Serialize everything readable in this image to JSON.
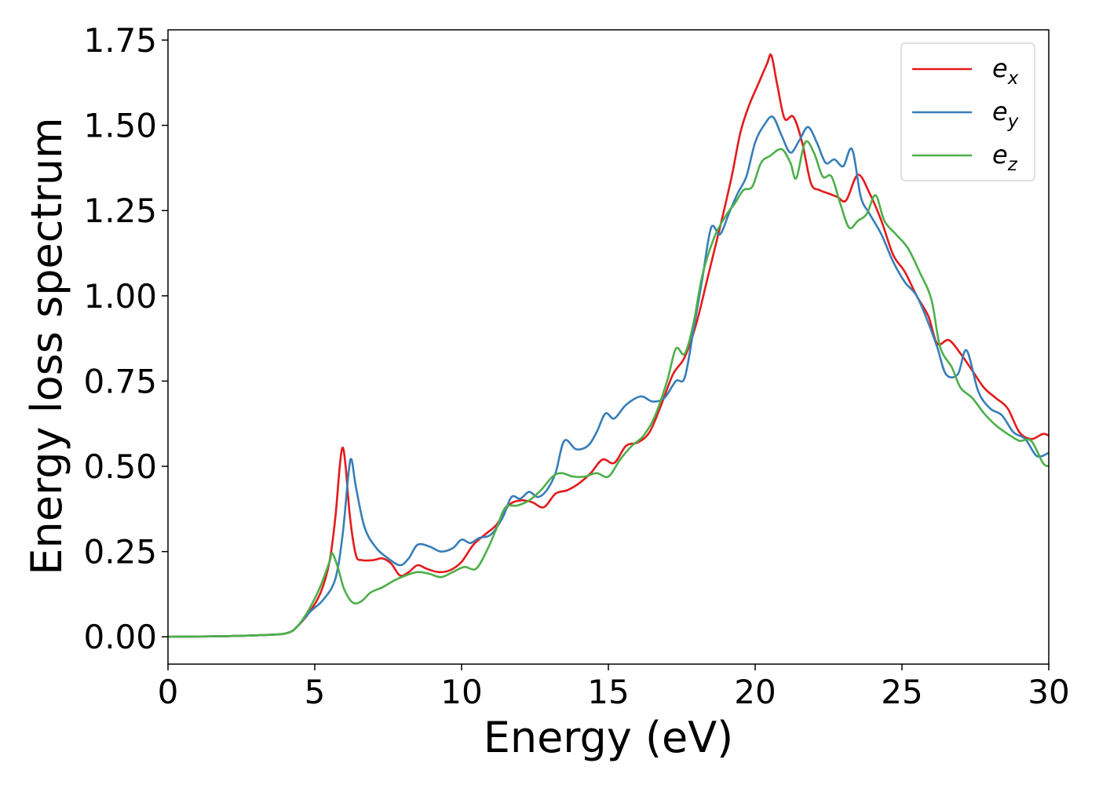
{
  "chart_data": {
    "type": "line",
    "title": "",
    "xlabel": "Energy (eV)",
    "ylabel": "Energy loss spectrum",
    "xlim": [
      0,
      30
    ],
    "ylim": [
      -0.08,
      1.78
    ],
    "xticks": [
      0,
      5,
      10,
      15,
      20,
      25,
      30
    ],
    "xtick_labels": [
      "0",
      "5",
      "10",
      "15",
      "20",
      "25",
      "30"
    ],
    "yticks": [
      0.0,
      0.25,
      0.5,
      0.75,
      1.0,
      1.25,
      1.5,
      1.75
    ],
    "ytick_labels": [
      "0.00",
      "0.25",
      "0.50",
      "0.75",
      "1.00",
      "1.25",
      "1.50",
      "1.75"
    ],
    "grid": false,
    "legend_position": "top-right",
    "series": [
      {
        "name": "e_x",
        "base": "e",
        "sub": "x",
        "color": "#e41a1c",
        "points": [
          [
            0,
            0
          ],
          [
            2,
            0.002
          ],
          [
            3.5,
            0.006
          ],
          [
            4.1,
            0.012
          ],
          [
            4.4,
            0.03
          ],
          [
            4.8,
            0.07
          ],
          [
            5.2,
            0.13
          ],
          [
            5.5,
            0.22
          ],
          [
            5.7,
            0.35
          ],
          [
            5.85,
            0.5
          ],
          [
            5.95,
            0.555
          ],
          [
            6.05,
            0.5
          ],
          [
            6.2,
            0.35
          ],
          [
            6.4,
            0.24
          ],
          [
            6.6,
            0.225
          ],
          [
            7.0,
            0.225
          ],
          [
            7.3,
            0.23
          ],
          [
            7.6,
            0.215
          ],
          [
            7.9,
            0.18
          ],
          [
            8.2,
            0.19
          ],
          [
            8.5,
            0.21
          ],
          [
            8.8,
            0.2
          ],
          [
            9.2,
            0.19
          ],
          [
            9.6,
            0.195
          ],
          [
            10.0,
            0.22
          ],
          [
            10.4,
            0.27
          ],
          [
            10.8,
            0.3
          ],
          [
            11.2,
            0.33
          ],
          [
            11.6,
            0.385
          ],
          [
            12.0,
            0.4
          ],
          [
            12.4,
            0.395
          ],
          [
            12.8,
            0.38
          ],
          [
            13.2,
            0.42
          ],
          [
            13.6,
            0.43
          ],
          [
            14.0,
            0.45
          ],
          [
            14.4,
            0.48
          ],
          [
            14.8,
            0.52
          ],
          [
            15.2,
            0.51
          ],
          [
            15.6,
            0.56
          ],
          [
            16.0,
            0.57
          ],
          [
            16.4,
            0.6
          ],
          [
            16.8,
            0.68
          ],
          [
            17.2,
            0.77
          ],
          [
            17.6,
            0.82
          ],
          [
            18.0,
            0.92
          ],
          [
            18.4,
            1.06
          ],
          [
            18.8,
            1.2
          ],
          [
            19.2,
            1.35
          ],
          [
            19.5,
            1.48
          ],
          [
            19.8,
            1.56
          ],
          [
            20.1,
            1.62
          ],
          [
            20.4,
            1.68
          ],
          [
            20.55,
            1.705
          ],
          [
            20.75,
            1.62
          ],
          [
            21.0,
            1.52
          ],
          [
            21.3,
            1.525
          ],
          [
            21.6,
            1.45
          ],
          [
            21.9,
            1.33
          ],
          [
            22.2,
            1.31
          ],
          [
            22.5,
            1.3
          ],
          [
            22.8,
            1.29
          ],
          [
            23.1,
            1.28
          ],
          [
            23.5,
            1.355
          ],
          [
            23.9,
            1.3
          ],
          [
            24.3,
            1.22
          ],
          [
            24.7,
            1.12
          ],
          [
            25.1,
            1.07
          ],
          [
            25.5,
            1.0
          ],
          [
            25.9,
            0.94
          ],
          [
            26.2,
            0.86
          ],
          [
            26.6,
            0.87
          ],
          [
            27.0,
            0.83
          ],
          [
            27.4,
            0.78
          ],
          [
            27.8,
            0.73
          ],
          [
            28.2,
            0.7
          ],
          [
            28.6,
            0.67
          ],
          [
            29.0,
            0.6
          ],
          [
            29.4,
            0.58
          ],
          [
            29.8,
            0.595
          ],
          [
            30,
            0.59
          ]
        ]
      },
      {
        "name": "e_y",
        "base": "e",
        "sub": "y",
        "color": "#377eb8",
        "points": [
          [
            0,
            0
          ],
          [
            2,
            0.002
          ],
          [
            3.5,
            0.006
          ],
          [
            4.1,
            0.012
          ],
          [
            4.4,
            0.03
          ],
          [
            4.8,
            0.07
          ],
          [
            5.3,
            0.11
          ],
          [
            5.7,
            0.17
          ],
          [
            5.95,
            0.3
          ],
          [
            6.15,
            0.48
          ],
          [
            6.25,
            0.52
          ],
          [
            6.4,
            0.44
          ],
          [
            6.7,
            0.32
          ],
          [
            7.1,
            0.26
          ],
          [
            7.5,
            0.23
          ],
          [
            7.9,
            0.21
          ],
          [
            8.2,
            0.23
          ],
          [
            8.5,
            0.27
          ],
          [
            8.9,
            0.265
          ],
          [
            9.3,
            0.25
          ],
          [
            9.7,
            0.26
          ],
          [
            10.0,
            0.285
          ],
          [
            10.3,
            0.275
          ],
          [
            10.6,
            0.29
          ],
          [
            11.0,
            0.3
          ],
          [
            11.4,
            0.35
          ],
          [
            11.7,
            0.41
          ],
          [
            12.0,
            0.405
          ],
          [
            12.3,
            0.425
          ],
          [
            12.6,
            0.41
          ],
          [
            12.9,
            0.43
          ],
          [
            13.2,
            0.48
          ],
          [
            13.5,
            0.575
          ],
          [
            13.9,
            0.55
          ],
          [
            14.3,
            0.56
          ],
          [
            14.6,
            0.6
          ],
          [
            14.9,
            0.655
          ],
          [
            15.2,
            0.64
          ],
          [
            15.6,
            0.68
          ],
          [
            16.1,
            0.705
          ],
          [
            16.5,
            0.69
          ],
          [
            16.9,
            0.7
          ],
          [
            17.3,
            0.75
          ],
          [
            17.6,
            0.76
          ],
          [
            17.9,
            0.9
          ],
          [
            18.2,
            1.05
          ],
          [
            18.5,
            1.2
          ],
          [
            18.8,
            1.18
          ],
          [
            19.1,
            1.24
          ],
          [
            19.4,
            1.3
          ],
          [
            19.7,
            1.35
          ],
          [
            20.0,
            1.45
          ],
          [
            20.3,
            1.5
          ],
          [
            20.6,
            1.525
          ],
          [
            20.9,
            1.47
          ],
          [
            21.2,
            1.42
          ],
          [
            21.5,
            1.455
          ],
          [
            21.8,
            1.495
          ],
          [
            22.1,
            1.45
          ],
          [
            22.4,
            1.39
          ],
          [
            22.7,
            1.4
          ],
          [
            23.0,
            1.38
          ],
          [
            23.3,
            1.43
          ],
          [
            23.6,
            1.29
          ],
          [
            23.9,
            1.24
          ],
          [
            24.3,
            1.18
          ],
          [
            24.7,
            1.1
          ],
          [
            25.1,
            1.04
          ],
          [
            25.5,
            1.0
          ],
          [
            25.9,
            0.92
          ],
          [
            26.2,
            0.85
          ],
          [
            26.5,
            0.77
          ],
          [
            26.9,
            0.77
          ],
          [
            27.2,
            0.84
          ],
          [
            27.6,
            0.72
          ],
          [
            28.0,
            0.67
          ],
          [
            28.4,
            0.65
          ],
          [
            28.8,
            0.6
          ],
          [
            29.2,
            0.58
          ],
          [
            29.6,
            0.53
          ],
          [
            30,
            0.54
          ]
        ]
      },
      {
        "name": "e_z",
        "base": "e",
        "sub": "z",
        "color": "#4daf4a",
        "points": [
          [
            0,
            0
          ],
          [
            2,
            0.002
          ],
          [
            3.5,
            0.006
          ],
          [
            4.1,
            0.012
          ],
          [
            4.4,
            0.03
          ],
          [
            4.8,
            0.08
          ],
          [
            5.2,
            0.15
          ],
          [
            5.5,
            0.22
          ],
          [
            5.6,
            0.245
          ],
          [
            5.8,
            0.2
          ],
          [
            6.0,
            0.14
          ],
          [
            6.3,
            0.1
          ],
          [
            6.6,
            0.105
          ],
          [
            6.9,
            0.13
          ],
          [
            7.3,
            0.145
          ],
          [
            7.7,
            0.165
          ],
          [
            8.1,
            0.18
          ],
          [
            8.5,
            0.19
          ],
          [
            8.9,
            0.185
          ],
          [
            9.3,
            0.175
          ],
          [
            9.7,
            0.19
          ],
          [
            10.1,
            0.205
          ],
          [
            10.5,
            0.2
          ],
          [
            10.9,
            0.26
          ],
          [
            11.2,
            0.32
          ],
          [
            11.5,
            0.38
          ],
          [
            11.9,
            0.385
          ],
          [
            12.3,
            0.4
          ],
          [
            12.7,
            0.43
          ],
          [
            13.1,
            0.47
          ],
          [
            13.4,
            0.48
          ],
          [
            13.8,
            0.47
          ],
          [
            14.2,
            0.47
          ],
          [
            14.6,
            0.48
          ],
          [
            15.0,
            0.47
          ],
          [
            15.4,
            0.52
          ],
          [
            15.8,
            0.56
          ],
          [
            16.2,
            0.59
          ],
          [
            16.6,
            0.65
          ],
          [
            17.0,
            0.75
          ],
          [
            17.3,
            0.845
          ],
          [
            17.6,
            0.83
          ],
          [
            17.9,
            0.92
          ],
          [
            18.2,
            1.06
          ],
          [
            18.6,
            1.17
          ],
          [
            19.0,
            1.235
          ],
          [
            19.3,
            1.27
          ],
          [
            19.6,
            1.31
          ],
          [
            19.9,
            1.32
          ],
          [
            20.2,
            1.39
          ],
          [
            20.5,
            1.41
          ],
          [
            20.9,
            1.43
          ],
          [
            21.2,
            1.39
          ],
          [
            21.4,
            1.345
          ],
          [
            21.7,
            1.45
          ],
          [
            22.0,
            1.42
          ],
          [
            22.3,
            1.35
          ],
          [
            22.6,
            1.35
          ],
          [
            22.9,
            1.27
          ],
          [
            23.2,
            1.2
          ],
          [
            23.5,
            1.22
          ],
          [
            23.8,
            1.24
          ],
          [
            24.1,
            1.295
          ],
          [
            24.4,
            1.22
          ],
          [
            24.8,
            1.18
          ],
          [
            25.2,
            1.14
          ],
          [
            25.6,
            1.07
          ],
          [
            26.0,
            0.99
          ],
          [
            26.3,
            0.85
          ],
          [
            26.7,
            0.79
          ],
          [
            27.0,
            0.73
          ],
          [
            27.4,
            0.7
          ],
          [
            27.8,
            0.655
          ],
          [
            28.2,
            0.62
          ],
          [
            28.6,
            0.595
          ],
          [
            29.0,
            0.575
          ],
          [
            29.4,
            0.575
          ],
          [
            29.8,
            0.51
          ],
          [
            30,
            0.5
          ]
        ]
      }
    ]
  }
}
